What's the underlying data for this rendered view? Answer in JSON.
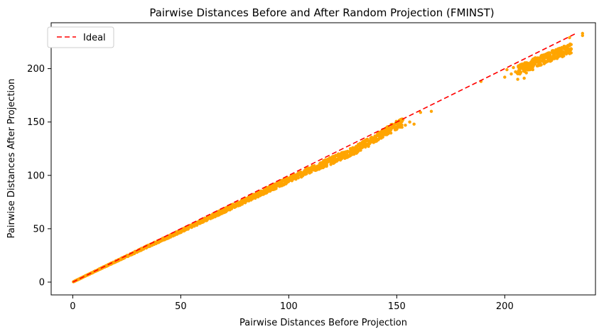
{
  "chart_data": {
    "type": "scatter",
    "title": "Pairwise Distances Before and After Random Projection (FMINST)",
    "xlabel": "Pairwise Distances Before Projection",
    "ylabel": "Pairwise Distances After Projection",
    "xlim": [
      -10,
      242
    ],
    "ylim": [
      -12,
      243
    ],
    "xticks": [
      0,
      50,
      100,
      150,
      200
    ],
    "yticks": [
      0,
      50,
      100,
      150,
      200
    ],
    "grid": false,
    "legend": {
      "position": "top-left",
      "entries": [
        "Ideal"
      ]
    },
    "colors": {
      "points": "#FFA500",
      "ideal_line": "#FF0000"
    },
    "ideal_line": {
      "x": [
        0,
        233
      ],
      "y": [
        0,
        233
      ],
      "style": "dashed"
    },
    "band": {
      "description": "dense cloud of points following the ideal line, slightly below it",
      "x_range": [
        0,
        230
      ],
      "ratio_center_points": [
        [
          0,
          0.985
        ],
        [
          50,
          0.955
        ],
        [
          100,
          0.96
        ],
        [
          130,
          0.945
        ],
        [
          150,
          0.98
        ],
        [
          215,
          0.96
        ],
        [
          230,
          0.95
        ]
      ],
      "ratio_spread": 0.035
    },
    "outlier_points": [
      {
        "x": 151.5,
        "y": 150
      },
      {
        "x": 154,
        "y": 147
      },
      {
        "x": 156,
        "y": 150
      },
      {
        "x": 158,
        "y": 148
      },
      {
        "x": 161,
        "y": 159
      },
      {
        "x": 166,
        "y": 160
      },
      {
        "x": 189,
        "y": 188
      },
      {
        "x": 200,
        "y": 192
      },
      {
        "x": 201,
        "y": 199
      },
      {
        "x": 203,
        "y": 195
      },
      {
        "x": 204,
        "y": 201
      },
      {
        "x": 205,
        "y": 197
      },
      {
        "x": 206,
        "y": 190
      },
      {
        "x": 207,
        "y": 200
      },
      {
        "x": 209,
        "y": 191
      },
      {
        "x": 210,
        "y": 196
      },
      {
        "x": 212,
        "y": 203
      },
      {
        "x": 213,
        "y": 199
      },
      {
        "x": 230,
        "y": 229
      },
      {
        "x": 236,
        "y": 233
      },
      {
        "x": 236,
        "y": 231
      }
    ]
  }
}
